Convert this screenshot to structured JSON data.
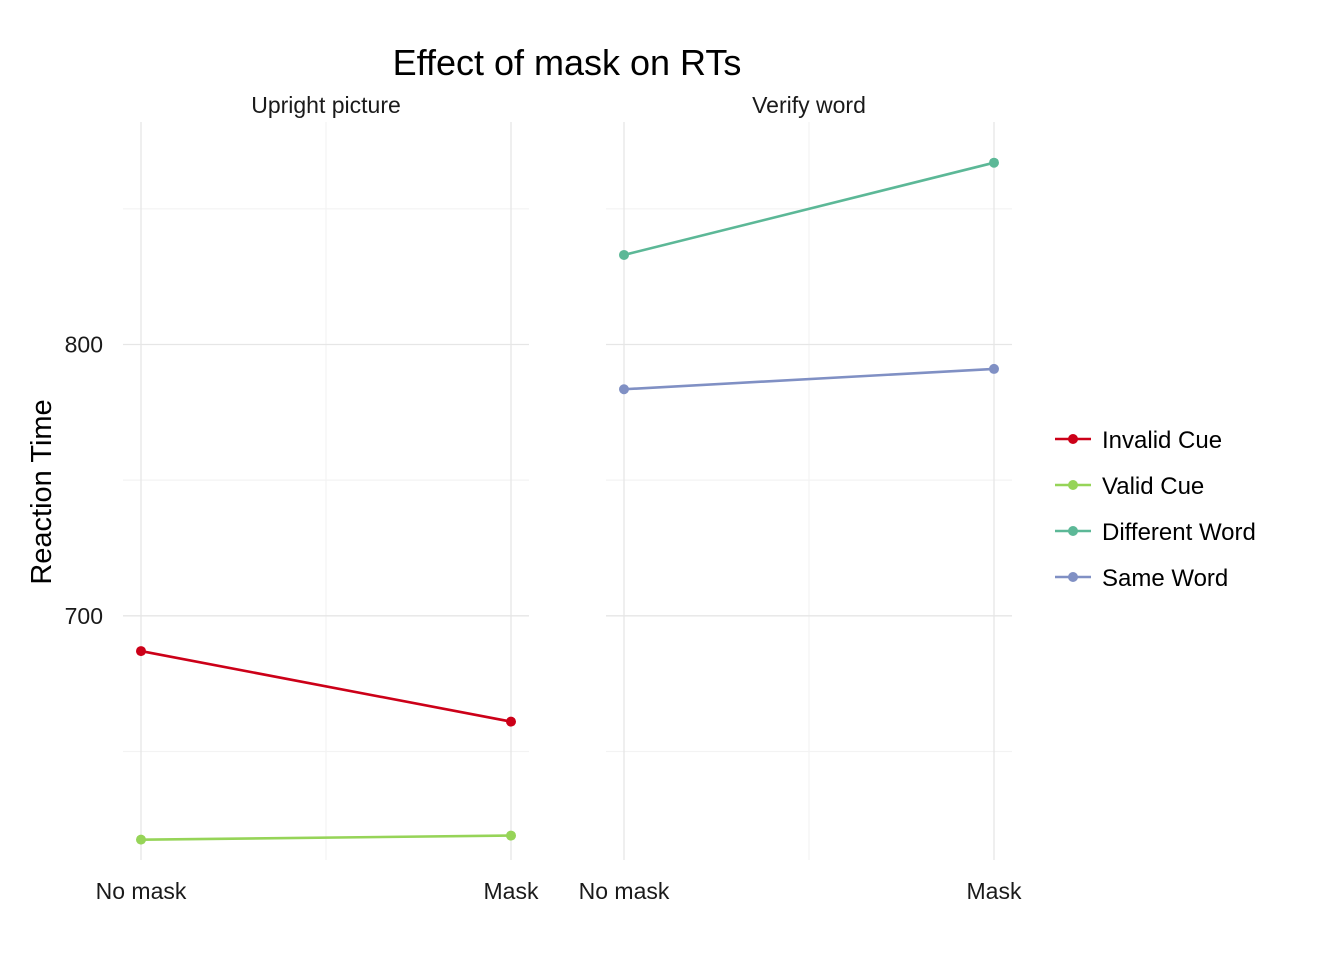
{
  "chart_data": {
    "type": "line",
    "title": "Effect of mask on RTs",
    "ylabel": "Reaction Time",
    "xlabel": "",
    "categories": [
      "No mask",
      "Mask"
    ],
    "yticks": [
      700,
      800
    ],
    "ylim": [
      610,
      882
    ],
    "grid": true,
    "legend_position": "right",
    "legend": [
      {
        "name": "Invalid Cue",
        "color": "#cc0018"
      },
      {
        "name": "Valid Cue",
        "color": "#96d458"
      },
      {
        "name": "Different Word",
        "color": "#5cb897"
      },
      {
        "name": "Same Word",
        "color": "#8090c4"
      }
    ],
    "panels": [
      {
        "title": "Upright picture",
        "series": [
          {
            "name": "Invalid Cue",
            "color": "#cc0018",
            "values": [
              687,
              661
            ]
          },
          {
            "name": "Valid Cue",
            "color": "#96d458",
            "values": [
              617.5,
              619
            ]
          }
        ]
      },
      {
        "title": "Verify word",
        "series": [
          {
            "name": "Different Word",
            "color": "#5cb897",
            "values": [
              833,
              867
            ]
          },
          {
            "name": "Same Word",
            "color": "#8090c4",
            "values": [
              783.5,
              791
            ]
          }
        ]
      }
    ]
  }
}
